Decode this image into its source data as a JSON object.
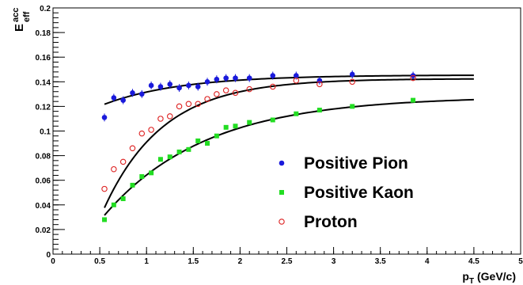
{
  "chart_data": {
    "type": "scatter",
    "xlabel": {
      "main": "p",
      "sub": "T",
      "rest": " (GeV/c)"
    },
    "ylabel": {
      "main": "E",
      "sup": "acc",
      "sub": "eff"
    },
    "xlim": [
      0,
      5
    ],
    "ylim": [
      0,
      0.2
    ],
    "x_ticks": [
      "0",
      "0.5",
      "1",
      "1.5",
      "2",
      "2.5",
      "3",
      "3.5",
      "4",
      "4.5",
      "5"
    ],
    "y_ticks": [
      "0",
      "0.02",
      "0.04",
      "0.06",
      "0.08",
      "0.1",
      "0.12",
      "0.14",
      "0.16",
      "0.18",
      "0.2"
    ],
    "grid": false,
    "legend_position": "bottom-right",
    "series": [
      {
        "name": "Positive Pion",
        "marker": "filled-circle",
        "color": "#1a1adb",
        "x": [
          0.55,
          0.65,
          0.75,
          0.85,
          0.95,
          1.05,
          1.15,
          1.25,
          1.35,
          1.45,
          1.55,
          1.65,
          1.75,
          1.85,
          1.95,
          2.1,
          2.35,
          2.6,
          2.85,
          3.2,
          3.85
        ],
        "y": [
          0.111,
          0.127,
          0.125,
          0.131,
          0.13,
          0.137,
          0.136,
          0.138,
          0.135,
          0.137,
          0.136,
          0.14,
          0.142,
          0.143,
          0.143,
          0.143,
          0.145,
          0.145,
          0.141,
          0.146,
          0.145
        ],
        "fit": {
          "p0": 0.1455,
          "p1": 0.046,
          "p2": 1.2
        }
      },
      {
        "name": "Positive Kaon",
        "marker": "filled-square",
        "color": "#22dd22",
        "x": [
          0.55,
          0.65,
          0.75,
          0.85,
          0.95,
          1.05,
          1.15,
          1.25,
          1.35,
          1.45,
          1.55,
          1.65,
          1.75,
          1.85,
          1.95,
          2.1,
          2.35,
          2.6,
          2.85,
          3.2,
          3.85
        ],
        "y": [
          0.028,
          0.04,
          0.045,
          0.056,
          0.063,
          0.066,
          0.077,
          0.079,
          0.083,
          0.085,
          0.092,
          0.09,
          0.096,
          0.103,
          0.104,
          0.107,
          0.109,
          0.114,
          0.117,
          0.12,
          0.125
        ],
        "fit": {
          "p0": 0.128,
          "p1": 0.16,
          "p2": 0.92
        }
      },
      {
        "name": "Proton",
        "marker": "open-circle",
        "color": "#dd2020",
        "x": [
          0.55,
          0.65,
          0.75,
          0.85,
          0.95,
          1.05,
          1.15,
          1.25,
          1.35,
          1.45,
          1.55,
          1.65,
          1.75,
          1.85,
          1.95,
          2.1,
          2.35,
          2.6,
          2.85,
          3.2,
          3.85
        ],
        "y": [
          0.053,
          0.069,
          0.075,
          0.086,
          0.098,
          0.101,
          0.11,
          0.112,
          0.12,
          0.122,
          0.122,
          0.126,
          0.13,
          0.133,
          0.131,
          0.134,
          0.136,
          0.141,
          0.138,
          0.14,
          0.143
        ],
        "fit": {
          "p0": 0.1425,
          "p1": 0.25,
          "p2": 1.58
        }
      }
    ]
  }
}
